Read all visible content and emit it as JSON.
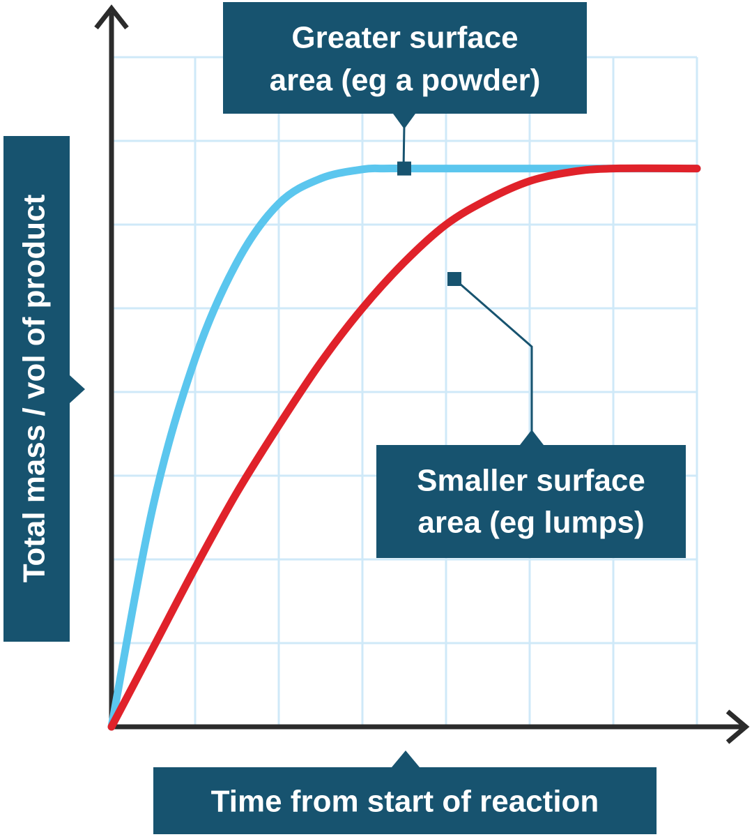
{
  "chart_data": {
    "type": "line",
    "xlabel": "Time from start of reaction",
    "ylabel": "Total mass / vol of product",
    "grid": true,
    "colors": {
      "box": "#17536f",
      "grid": "#cfe9f8",
      "axis": "#2b2b2b"
    },
    "series": [
      {
        "key": "greater",
        "color": "#5bc6ee",
        "x": [
          0,
          0.5,
          1,
          1.5,
          2,
          2.5,
          3,
          3.25,
          3.5,
          4,
          5,
          6,
          7
        ],
        "y": [
          0,
          2.65,
          4.4,
          5.55,
          6.25,
          6.55,
          6.66,
          6.67,
          6.67,
          6.67,
          6.67,
          6.67,
          6.67
        ]
      },
      {
        "key": "smaller",
        "color": "#e0222a",
        "x": [
          0,
          0.5,
          1,
          1.5,
          2,
          2.5,
          3,
          3.5,
          4,
          4.5,
          5,
          5.5,
          6,
          7
        ],
        "y": [
          0,
          0.95,
          1.9,
          2.8,
          3.6,
          4.35,
          5.0,
          5.55,
          6.0,
          6.3,
          6.52,
          6.63,
          6.67,
          6.67
        ]
      }
    ],
    "annotations": [
      {
        "series": "greater",
        "text_lines": [
          "Greater surface",
          "area (eg a powder)"
        ],
        "point": {
          "x": 3.5,
          "y": 6.67
        }
      },
      {
        "series": "smaller",
        "text_lines": [
          "Smaller surface",
          "area (eg lumps)"
        ],
        "point": {
          "x": 4.1,
          "y": 5.35
        }
      }
    ]
  }
}
